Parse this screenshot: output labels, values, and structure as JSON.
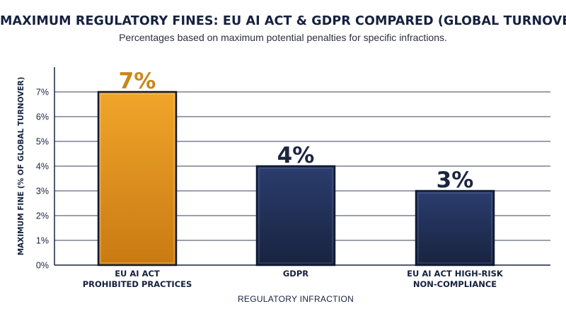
{
  "title": "MAXIMUM REGULATORY FINES: EU AI ACT & GDPR COMPARED (GLOBAL TURNOVER)",
  "subtitle": "Percentages based on maximum potential penalties for specific infractions.",
  "chart_data": {
    "type": "bar",
    "title": "MAXIMUM REGULATORY FINES: EU AI ACT & GDPR COMPARED (GLOBAL TURNOVER)",
    "subtitle": "Percentages based on maximum potential penalties for specific infractions.",
    "xlabel": "REGULATORY INFRACTION",
    "ylabel": "MAXIMUM FINE (% OF GLOBAL TURNOVER)",
    "ylim": [
      0,
      7
    ],
    "yticks": [
      0,
      1,
      2,
      3,
      4,
      5,
      6,
      7
    ],
    "ytick_labels": [
      "0%",
      "1%",
      "2%",
      "3%",
      "4%",
      "5%",
      "6%",
      "7%"
    ],
    "grid": true,
    "categories": [
      [
        "EU AI ACT",
        "PROHIBITED PRACTICES"
      ],
      [
        "GDPR"
      ],
      [
        "EU AI ACT HIGH-RISK",
        "NON-COMPLIANCE"
      ]
    ],
    "values": [
      7,
      4,
      3
    ],
    "data_labels": [
      "7%",
      "4%",
      "3%"
    ],
    "bar_colors": [
      "#e39a1f",
      "#24345f",
      "#24345f"
    ],
    "label_colors": [
      "#c98718",
      "#1b2540",
      "#1b2540"
    ]
  }
}
